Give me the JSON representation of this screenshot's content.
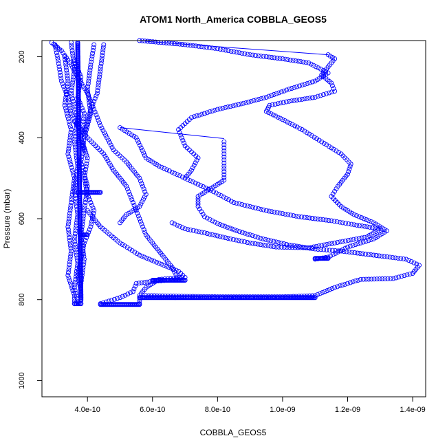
{
  "chart_data": {
    "type": "scatter",
    "title": "ATOM1 North_America COBBLA_GEOS5",
    "xlabel": "COBBLA_GEOS5",
    "ylabel": "Pressure (mbar)",
    "xlim": [
      2.6e-10,
      1.44e-09
    ],
    "ylim": [
      1040,
      160
    ],
    "y_reversed": true,
    "x_ticks": [
      4e-10,
      6e-10,
      8e-10,
      1e-09,
      1.2e-09,
      1.4e-09
    ],
    "x_tick_labels": [
      "4.0e-10",
      "6.0e-10",
      "8.0e-10",
      "1.0e-09",
      "1.2e-09",
      "1.4e-09"
    ],
    "y_ticks": [
      200,
      400,
      600,
      800,
      1000
    ],
    "y_tick_labels": [
      "200",
      "400",
      "600",
      "800",
      "1000"
    ],
    "marker": "open-circle",
    "color": "#0000ff",
    "series": [
      {
        "profile": "far-right-loop",
        "points": [
          [
            1.1e-09,
            700
          ],
          [
            1.14e-09,
            695
          ],
          [
            1.2e-09,
            670
          ],
          [
            1.28e-09,
            650
          ],
          [
            1.32e-09,
            630
          ],
          [
            1.28e-09,
            610
          ],
          [
            1.22e-09,
            590
          ],
          [
            1.18e-09,
            570
          ],
          [
            1.15e-09,
            545
          ],
          [
            1.17e-09,
            520
          ],
          [
            1.2e-09,
            490
          ],
          [
            1.21e-09,
            465
          ],
          [
            1.18e-09,
            440
          ],
          [
            1.12e-09,
            410
          ],
          [
            1.06e-09,
            380
          ],
          [
            1e-09,
            355
          ],
          [
            9.5e-10,
            335
          ],
          [
            9.6e-10,
            320
          ],
          [
            1.02e-09,
            310
          ],
          [
            1.1e-09,
            300
          ],
          [
            1.16e-09,
            285
          ],
          [
            1.15e-09,
            265
          ],
          [
            1.12e-09,
            245
          ],
          [
            1.14e-09,
            225
          ],
          [
            1.16e-09,
            205
          ],
          [
            1.14e-09,
            195
          ]
        ]
      },
      {
        "profile": "right-loop-lower",
        "points": [
          [
            5.8e-10,
            790
          ],
          [
            8e-10,
            793
          ],
          [
            1e-09,
            793
          ],
          [
            1.1e-09,
            790
          ],
          [
            1.16e-09,
            770
          ],
          [
            1.24e-09,
            750
          ],
          [
            1.34e-09,
            748
          ],
          [
            1.4e-09,
            735
          ],
          [
            1.42e-09,
            715
          ],
          [
            1.38e-09,
            700
          ],
          [
            1.28e-09,
            690
          ],
          [
            1.18e-09,
            680
          ],
          [
            1.1e-09,
            675
          ],
          [
            1.02e-09,
            665
          ],
          [
            9.4e-10,
            650
          ],
          [
            8.6e-10,
            630
          ],
          [
            8e-10,
            612
          ],
          [
            7.6e-10,
            595
          ],
          [
            7.4e-10,
            570
          ],
          [
            7.4e-10,
            545
          ],
          [
            7.8e-10,
            525
          ],
          [
            8.2e-10,
            505
          ],
          [
            8.2e-10,
            470
          ],
          [
            8.2e-10,
            440
          ],
          [
            8.2e-10,
            410
          ]
        ]
      },
      {
        "profile": "mid-dashed-loop",
        "points": [
          [
            5e-10,
            375
          ],
          [
            5.5e-10,
            400
          ],
          [
            5.8e-10,
            450
          ],
          [
            6.2e-10,
            470
          ],
          [
            7e-10,
            500
          ],
          [
            7.8e-10,
            530
          ],
          [
            8.5e-10,
            560
          ],
          [
            9.5e-10,
            580
          ],
          [
            1.05e-09,
            595
          ],
          [
            1.15e-09,
            605
          ],
          [
            1.22e-09,
            615
          ],
          [
            1.3e-09,
            625
          ],
          [
            1.26e-09,
            645
          ],
          [
            1.16e-09,
            660
          ],
          [
            1.08e-09,
            672
          ],
          [
            9.8e-10,
            670
          ],
          [
            9e-10,
            660
          ],
          [
            8.4e-10,
            650
          ],
          [
            7.6e-10,
            635
          ],
          [
            7e-10,
            625
          ],
          [
            6.6e-10,
            610
          ]
        ]
      },
      {
        "profile": "upper-dashed",
        "points": [
          [
            5.6e-10,
            160
          ],
          [
            7e-10,
            170
          ],
          [
            8e-10,
            180
          ],
          [
            9e-10,
            195
          ],
          [
            1e-09,
            205
          ],
          [
            1.08e-09,
            215
          ],
          [
            1.14e-09,
            240
          ],
          [
            1.1e-09,
            260
          ],
          [
            1.02e-09,
            280
          ],
          [
            9.5e-10,
            300
          ],
          [
            8.8e-10,
            315
          ],
          [
            8e-10,
            330
          ],
          [
            7.2e-10,
            350
          ],
          [
            6.8e-10,
            380
          ],
          [
            7e-10,
            420
          ],
          [
            7.4e-10,
            450
          ],
          [
            7.2e-10,
            480
          ],
          [
            7e-10,
            500
          ]
        ]
      },
      {
        "profile": "left-upper-dashed",
        "points": [
          [
            2.9e-10,
            165
          ],
          [
            3.2e-10,
            185
          ],
          [
            3.5e-10,
            220
          ],
          [
            3.7e-10,
            250
          ],
          [
            4e-10,
            290
          ],
          [
            4.2e-10,
            330
          ],
          [
            4.4e-10,
            370
          ],
          [
            4.6e-10,
            400
          ],
          [
            4.8e-10,
            430
          ],
          [
            5.2e-10,
            460
          ],
          [
            5.6e-10,
            500
          ],
          [
            5.8e-10,
            540
          ],
          [
            5.6e-10,
            570
          ],
          [
            5.2e-10,
            590
          ],
          [
            5e-10,
            610
          ]
        ]
      },
      {
        "profile": "mid-lower",
        "points": [
          [
            3.6e-10,
            360
          ],
          [
            4e-10,
            400
          ],
          [
            4.5e-10,
            440
          ],
          [
            4.8e-10,
            480
          ],
          [
            5.2e-10,
            520
          ],
          [
            5.4e-10,
            560
          ],
          [
            5.6e-10,
            600
          ],
          [
            5.8e-10,
            640
          ],
          [
            6.2e-10,
            680
          ],
          [
            6.6e-10,
            720
          ],
          [
            6.8e-10,
            750
          ],
          [
            6e-10,
            755
          ],
          [
            5.5e-10,
            760
          ],
          [
            5.4e-10,
            780
          ],
          [
            5e-10,
            795
          ],
          [
            4.4e-10,
            810
          ]
        ]
      },
      {
        "profile": "lower-left-loop",
        "points": [
          [
            4e-10,
            580
          ],
          [
            4.4e-10,
            620
          ],
          [
            5e-10,
            660
          ],
          [
            5.6e-10,
            690
          ],
          [
            6.2e-10,
            710
          ],
          [
            6.8e-10,
            730
          ],
          [
            7e-10,
            745
          ],
          [
            6.2e-10,
            750
          ],
          [
            5.8e-10,
            770
          ],
          [
            5.6e-10,
            790
          ],
          [
            5.6e-10,
            810
          ]
        ]
      },
      {
        "profile": "left-wiggle-1",
        "points": [
          [
            3.6e-10,
            210
          ],
          [
            3.8e-10,
            250
          ],
          [
            3.7e-10,
            300
          ],
          [
            3.9e-10,
            340
          ],
          [
            3.8e-10,
            400
          ],
          [
            4e-10,
            450
          ],
          [
            3.9e-10,
            500
          ],
          [
            4e-10,
            540
          ],
          [
            4.2e-10,
            580
          ],
          [
            4.1e-10,
            620
          ],
          [
            3.9e-10,
            660
          ],
          [
            3.8e-10,
            700
          ],
          [
            3.7e-10,
            740
          ],
          [
            3.8e-10,
            780
          ],
          [
            3.8e-10,
            810
          ]
        ]
      },
      {
        "profile": "left-wiggle-2",
        "points": [
          [
            3.3e-10,
            200
          ],
          [
            3.4e-10,
            260
          ],
          [
            3.3e-10,
            320
          ],
          [
            3.5e-10,
            380
          ],
          [
            3.4e-10,
            440
          ],
          [
            3.6e-10,
            500
          ],
          [
            3.5e-10,
            560
          ],
          [
            3.4e-10,
            620
          ],
          [
            3.5e-10,
            680
          ],
          [
            3.4e-10,
            740
          ],
          [
            3.6e-10,
            790
          ],
          [
            3.6e-10,
            810
          ]
        ]
      },
      {
        "profile": "left-wiggle-3",
        "points": [
          [
            3.5e-10,
            165
          ],
          [
            3.6e-10,
            230
          ],
          [
            3.5e-10,
            290
          ],
          [
            3.7e-10,
            350
          ],
          [
            3.6e-10,
            410
          ],
          [
            3.7e-10,
            470
          ],
          [
            3.6e-10,
            530
          ],
          [
            3.7e-10,
            590
          ],
          [
            3.6e-10,
            650
          ],
          [
            3.7e-10,
            710
          ],
          [
            3.6e-10,
            770
          ],
          [
            3.7e-10,
            805
          ]
        ]
      },
      {
        "profile": "left-wiggle-4",
        "points": [
          [
            4.2e-10,
            170
          ],
          [
            4.1e-10,
            220
          ],
          [
            4e-10,
            280
          ],
          [
            4.1e-10,
            340
          ],
          [
            3.9e-10,
            400
          ],
          [
            3.8e-10,
            460
          ],
          [
            4e-10,
            520
          ],
          [
            3.9e-10,
            580
          ],
          [
            3.8e-10,
            640
          ],
          [
            3.9e-10,
            700
          ],
          [
            3.8e-10,
            760
          ]
        ]
      },
      {
        "profile": "left-wiggle-5",
        "points": [
          [
            3e-10,
            170
          ],
          [
            3.1e-10,
            210
          ],
          [
            3.2e-10,
            260
          ],
          [
            3.4e-10,
            300
          ],
          [
            3.5e-10,
            340
          ],
          [
            3.7e-10,
            370
          ],
          [
            3.8e-10,
            400
          ],
          [
            3.9e-10,
            430
          ]
        ]
      },
      {
        "profile": "left-wiggle-6",
        "points": [
          [
            4.5e-10,
            170
          ],
          [
            4.4e-10,
            230
          ],
          [
            4.3e-10,
            290
          ],
          [
            4.1e-10,
            330
          ],
          [
            4e-10,
            360
          ],
          [
            3.9e-10,
            390
          ]
        ]
      }
    ],
    "dense_segments": [
      {
        "from": [
          4.4e-10,
          812
        ],
        "to": [
          5.6e-10,
          812
        ]
      },
      {
        "from": [
          5.6e-10,
          795
        ],
        "to": [
          1.1e-09,
          795
        ]
      },
      {
        "from": [
          3.6e-10,
          810
        ],
        "to": [
          3.8e-10,
          810
        ]
      },
      {
        "from": [
          3.7e-10,
          535
        ],
        "to": [
          4.4e-10,
          535
        ]
      },
      {
        "from": [
          3.7e-10,
          165
        ],
        "to": [
          3.8e-10,
          800
        ]
      },
      {
        "from": [
          6e-10,
          752
        ],
        "to": [
          7e-10,
          752
        ]
      },
      {
        "from": [
          1.1e-09,
          698
        ],
        "to": [
          1.14e-09,
          698
        ]
      },
      {
        "from": [
          3.8e-10,
          640
        ],
        "to": [
          4e-10,
          640
        ]
      }
    ],
    "connector_lines": [
      {
        "from": [
          5.8e-10,
          162
        ],
        "to": [
          1.14e-09,
          195
        ]
      },
      {
        "from": [
          5e-10,
          375
        ],
        "to": [
          8.2e-10,
          402
        ]
      },
      {
        "from": [
          3e-10,
          165
        ],
        "to": [
          3.2e-10,
          185
        ]
      }
    ]
  }
}
